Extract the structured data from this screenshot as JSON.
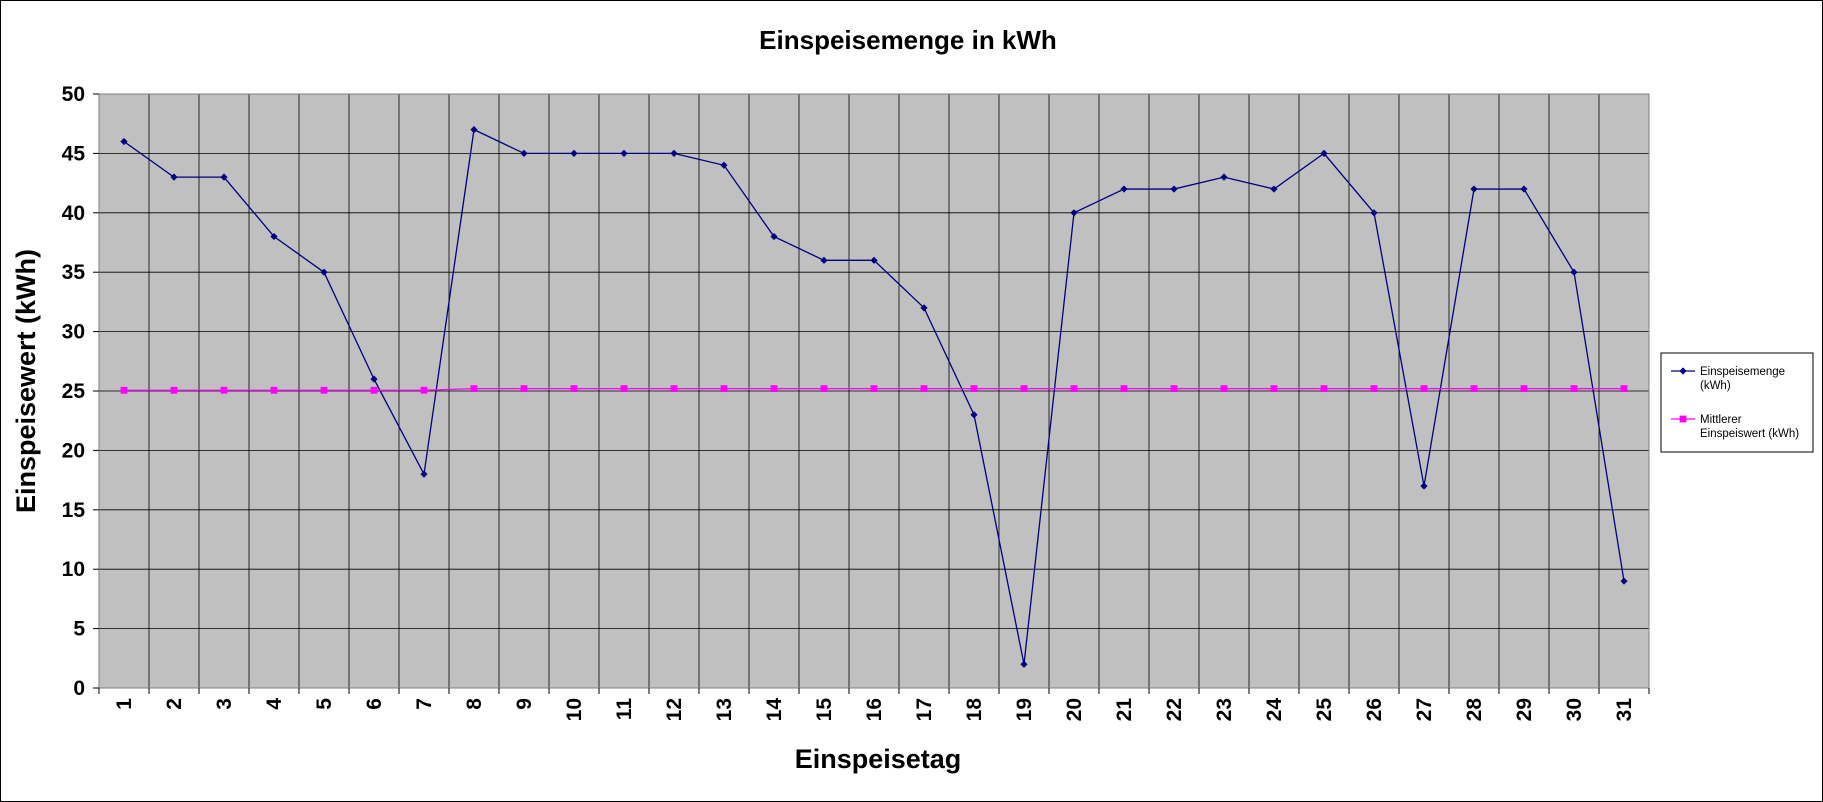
{
  "chart_data": {
    "type": "line",
    "title": "Einspeisemenge in kWh",
    "xlabel": "Einspeisetag",
    "ylabel": "Einspeisewert  (kWh)",
    "categories": [
      "1",
      "2",
      "3",
      "4",
      "5",
      "6",
      "7",
      "8",
      "9",
      "10",
      "11",
      "12",
      "13",
      "14",
      "15",
      "16",
      "17",
      "18",
      "19",
      "20",
      "21",
      "22",
      "23",
      "24",
      "25",
      "26",
      "27",
      "28",
      "29",
      "30",
      "31"
    ],
    "ylim": [
      0,
      50
    ],
    "yticks": [
      0,
      5,
      10,
      15,
      20,
      25,
      30,
      35,
      40,
      45,
      50
    ],
    "grid": true,
    "legend_position": "right",
    "series": [
      {
        "name": "Einspeisemenge (kWh)",
        "legend_lines": [
          "Einspeisemenge",
          "(kWh)"
        ],
        "color": "#000080",
        "marker": "diamond",
        "values": [
          46,
          43,
          43,
          38,
          35,
          26,
          18,
          47,
          45,
          45,
          45,
          45,
          44,
          38,
          36,
          36,
          32,
          23,
          2,
          40,
          42,
          42,
          43,
          42,
          45,
          40,
          17,
          42,
          42,
          35,
          9
        ]
      },
      {
        "name": "Mittlerer Einspeiswert (kWh)",
        "legend_lines": [
          "Mittlerer",
          "Einspeiswert (kWh)"
        ],
        "color": "#ff00ff",
        "marker": "square",
        "values": [
          25.06,
          25.06,
          25.06,
          25.06,
          25.06,
          25.06,
          25.06,
          25.2,
          25.2,
          25.2,
          25.2,
          25.2,
          25.2,
          25.2,
          25.2,
          25.2,
          25.2,
          25.2,
          25.2,
          25.2,
          25.2,
          25.2,
          25.2,
          25.2,
          25.2,
          25.2,
          25.2,
          25.2,
          25.2,
          25.2,
          25.2
        ]
      }
    ],
    "colors": {
      "plot_background": "#c0c0c0",
      "gridline": "#000000"
    }
  }
}
